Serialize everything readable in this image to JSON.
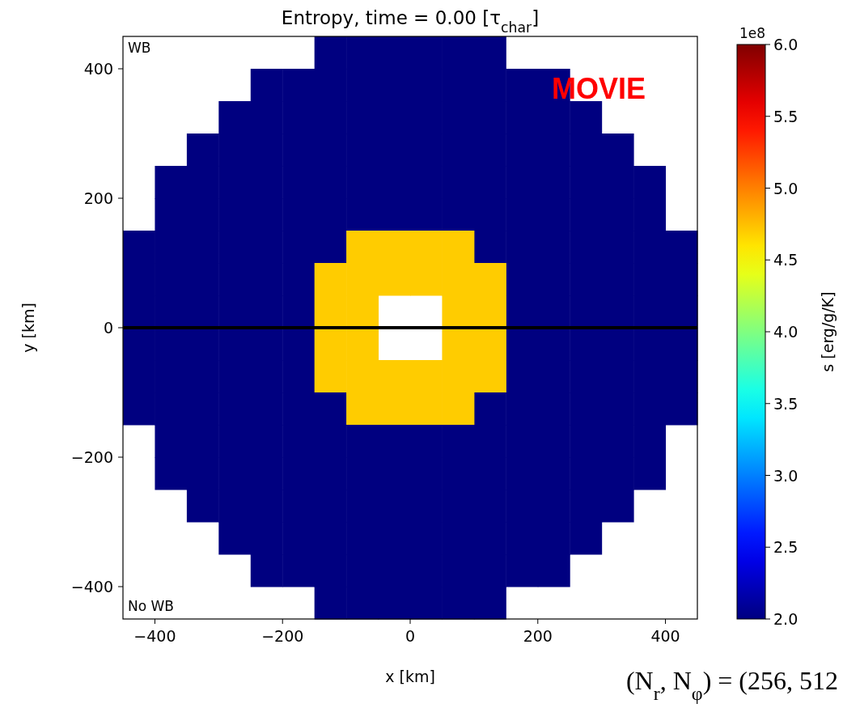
{
  "chart_data": {
    "type": "scatter",
    "title": "Entropy, time = 0.00 [τ$_{char}$]",
    "xlabel": "x [km]",
    "ylabel": "y [km]",
    "clabel": "s [erg/g/K]",
    "marker": "square",
    "annotations": [
      "WB",
      "No WB",
      "MOVIE",
      "1e8",
      "(N$_{r}$, N$_{φ}$) = (256, 512"
    ],
    "xlim": [
      -450,
      450
    ],
    "ylim": [
      -450,
      450
    ],
    "xticks": [
      {
        "value": -400,
        "label": "−400"
      },
      {
        "value": -200,
        "label": "−200"
      },
      0,
      200,
      400
    ],
    "yticks": [
      {
        "value": -400,
        "label": "−400"
      },
      {
        "value": -200,
        "label": "−200"
      },
      0,
      200,
      400
    ],
    "clim": [
      2,
      6
    ],
    "cticks": [
      {
        "value": 2,
        "label": "2.0"
      },
      {
        "value": 2.5,
        "label": "2.5"
      },
      {
        "value": 3,
        "label": "3.0"
      },
      {
        "value": 3.5,
        "label": "3.5"
      },
      {
        "value": 4,
        "label": "4.0"
      },
      {
        "value": 4.5,
        "label": "4.5"
      },
      {
        "value": 5,
        "label": "5.0"
      },
      {
        "value": 5.5,
        "label": "5.5"
      },
      {
        "value": 6,
        "label": "6.0"
      }
    ],
    "ref_lines": [
      {
        "axis": "y",
        "value": 0,
        "color": "#000000"
      }
    ],
    "series": [
      {
        "x": [
          -125,
          -75,
          -25,
          25,
          75,
          125
        ],
        "values": [
          425,
          425,
          425,
          425,
          425,
          425
        ],
        "cvalues": [
          2,
          2,
          2,
          2,
          2,
          2
        ]
      },
      {
        "x": [
          -225,
          -175,
          -125,
          -75,
          -25,
          25,
          75,
          125,
          175,
          225
        ],
        "values": [
          375,
          375,
          375,
          375,
          375,
          375,
          375,
          375,
          375,
          375
        ],
        "cvalues": [
          2,
          2,
          2,
          2,
          2,
          2,
          2,
          2,
          2,
          2
        ]
      },
      {
        "x": [
          -275,
          -225,
          -175,
          -125,
          -75,
          -25,
          25,
          75,
          125,
          175,
          225,
          275
        ],
        "values": [
          325,
          325,
          325,
          325,
          325,
          325,
          325,
          325,
          325,
          325,
          325,
          325
        ],
        "cvalues": [
          2,
          2,
          2,
          2,
          2,
          2,
          2,
          2,
          2,
          2,
          2,
          2
        ]
      },
      {
        "x": [
          -325,
          -275,
          -225,
          -175,
          -125,
          -75,
          -25,
          25,
          75,
          125,
          175,
          225,
          275,
          325
        ],
        "values": [
          275,
          275,
          275,
          275,
          275,
          275,
          275,
          275,
          275,
          275,
          275,
          275,
          275,
          275
        ],
        "cvalues": [
          2,
          2,
          2,
          2,
          2,
          2,
          2,
          2,
          2,
          2,
          2,
          2,
          2,
          2
        ]
      },
      {
        "x": [
          -375,
          -325,
          -275,
          -225,
          -175,
          -125,
          -75,
          -25,
          25,
          75,
          125,
          175,
          225,
          275,
          325,
          375
        ],
        "values": [
          225,
          225,
          225,
          225,
          225,
          225,
          225,
          225,
          225,
          225,
          225,
          225,
          225,
          225,
          225,
          225
        ],
        "cvalues": [
          2,
          2,
          2,
          2,
          2,
          2,
          2,
          2,
          2,
          2,
          2,
          2,
          2,
          2,
          2,
          2
        ]
      },
      {
        "x": [
          -375,
          -325,
          -275,
          -225,
          -175,
          -125,
          -75,
          -25,
          25,
          75,
          125,
          175,
          225,
          275,
          325,
          375
        ],
        "values": [
          175,
          175,
          175,
          175,
          175,
          175,
          175,
          175,
          175,
          175,
          175,
          175,
          175,
          175,
          175,
          175
        ],
        "cvalues": [
          2,
          2,
          2,
          2,
          2,
          2,
          2,
          2,
          2,
          2,
          2,
          2,
          2,
          2,
          2,
          2
        ]
      },
      {
        "x": [
          -425,
          -375,
          -325,
          -275,
          -225,
          -175,
          -125,
          125,
          175,
          225,
          275,
          325,
          375,
          425
        ],
        "values": [
          125,
          125,
          125,
          125,
          125,
          125,
          125,
          125,
          125,
          125,
          125,
          125,
          125,
          125
        ],
        "cvalues": [
          2,
          2,
          2,
          2,
          2,
          2,
          2,
          2,
          2,
          2,
          2,
          2,
          2,
          2
        ]
      },
      {
        "x": [
          -75,
          -25,
          25,
          75
        ],
        "values": [
          125,
          125,
          125,
          125
        ],
        "cvalues": [
          4.7,
          4.7,
          4.7,
          4.7
        ]
      },
      {
        "x": [
          -425,
          -375,
          -325,
          -275,
          -225,
          -175,
          175,
          225,
          275,
          325,
          375,
          425
        ],
        "values": [
          75,
          75,
          75,
          75,
          75,
          75,
          75,
          75,
          75,
          75,
          75,
          75
        ],
        "cvalues": [
          2,
          2,
          2,
          2,
          2,
          2,
          2,
          2,
          2,
          2,
          2,
          2
        ]
      },
      {
        "x": [
          -125,
          -75,
          -25,
          25,
          75,
          125
        ],
        "values": [
          75,
          75,
          75,
          75,
          75,
          75
        ],
        "cvalues": [
          4.7,
          4.7,
          4.7,
          4.7,
          4.7,
          4.7
        ]
      },
      {
        "x": [
          -425,
          -375,
          -325,
          -275,
          -225,
          -175,
          175,
          225,
          275,
          325,
          375,
          425
        ],
        "values": [
          25,
          25,
          25,
          25,
          25,
          25,
          25,
          25,
          25,
          25,
          25,
          25
        ],
        "cvalues": [
          2,
          2,
          2,
          2,
          2,
          2,
          2,
          2,
          2,
          2,
          2,
          2
        ]
      },
      {
        "x": [
          -125,
          -75,
          75,
          125
        ],
        "values": [
          25,
          25,
          25,
          25
        ],
        "cvalues": [
          4.7,
          4.7,
          4.7,
          4.7
        ]
      },
      {
        "x": [
          -425,
          -375,
          -325,
          -275,
          -225,
          -175,
          175,
          225,
          275,
          325,
          375,
          425
        ],
        "values": [
          -25,
          -25,
          -25,
          -25,
          -25,
          -25,
          -25,
          -25,
          -25,
          -25,
          -25,
          -25
        ],
        "cvalues": [
          2,
          2,
          2,
          2,
          2,
          2,
          2,
          2,
          2,
          2,
          2,
          2
        ]
      },
      {
        "x": [
          -125,
          -75,
          75,
          125
        ],
        "values": [
          -25,
          -25,
          -25,
          -25
        ],
        "cvalues": [
          4.7,
          4.7,
          4.7,
          4.7
        ]
      },
      {
        "x": [
          -425,
          -375,
          -325,
          -275,
          -225,
          -175,
          175,
          225,
          275,
          325,
          375,
          425
        ],
        "values": [
          -75,
          -75,
          -75,
          -75,
          -75,
          -75,
          -75,
          -75,
          -75,
          -75,
          -75,
          -75
        ],
        "cvalues": [
          2,
          2,
          2,
          2,
          2,
          2,
          2,
          2,
          2,
          2,
          2,
          2
        ]
      },
      {
        "x": [
          -125,
          -75,
          -25,
          25,
          75,
          125
        ],
        "values": [
          -75,
          -75,
          -75,
          -75,
          -75,
          -75
        ],
        "cvalues": [
          4.7,
          4.7,
          4.7,
          4.7,
          4.7,
          4.7
        ]
      },
      {
        "x": [
          -425,
          -375,
          -325,
          -275,
          -225,
          -175,
          -125,
          125,
          175,
          225,
          275,
          325,
          375,
          425
        ],
        "values": [
          -125,
          -125,
          -125,
          -125,
          -125,
          -125,
          -125,
          -125,
          -125,
          -125,
          -125,
          -125,
          -125,
          -125
        ],
        "cvalues": [
          2,
          2,
          2,
          2,
          2,
          2,
          2,
          2,
          2,
          2,
          2,
          2,
          2,
          2
        ]
      },
      {
        "x": [
          -75,
          -25,
          25,
          75
        ],
        "values": [
          -125,
          -125,
          -125,
          -125
        ],
        "cvalues": [
          4.7,
          4.7,
          4.7,
          4.7
        ]
      },
      {
        "x": [
          -375,
          -325,
          -275,
          -225,
          -175,
          -125,
          -75,
          -25,
          25,
          75,
          125,
          175,
          225,
          275,
          325,
          375
        ],
        "values": [
          -175,
          -175,
          -175,
          -175,
          -175,
          -175,
          -175,
          -175,
          -175,
          -175,
          -175,
          -175,
          -175,
          -175,
          -175,
          -175
        ],
        "cvalues": [
          2,
          2,
          2,
          2,
          2,
          2,
          2,
          2,
          2,
          2,
          2,
          2,
          2,
          2,
          2,
          2
        ]
      },
      {
        "x": [
          -375,
          -325,
          -275,
          -225,
          -175,
          -125,
          -75,
          -25,
          25,
          75,
          125,
          175,
          225,
          275,
          325,
          375
        ],
        "values": [
          -225,
          -225,
          -225,
          -225,
          -225,
          -225,
          -225,
          -225,
          -225,
          -225,
          -225,
          -225,
          -225,
          -225,
          -225,
          -225
        ],
        "cvalues": [
          2,
          2,
          2,
          2,
          2,
          2,
          2,
          2,
          2,
          2,
          2,
          2,
          2,
          2,
          2,
          2
        ]
      },
      {
        "x": [
          -325,
          -275,
          -225,
          -175,
          -125,
          -75,
          -25,
          25,
          75,
          125,
          175,
          225,
          275,
          325
        ],
        "values": [
          -275,
          -275,
          -275,
          -275,
          -275,
          -275,
          -275,
          -275,
          -275,
          -275,
          -275,
          -275,
          -275,
          -275
        ],
        "cvalues": [
          2,
          2,
          2,
          2,
          2,
          2,
          2,
          2,
          2,
          2,
          2,
          2,
          2,
          2
        ]
      },
      {
        "x": [
          -275,
          -225,
          -175,
          -125,
          -75,
          -25,
          25,
          75,
          125,
          175,
          225,
          275
        ],
        "values": [
          -325,
          -325,
          -325,
          -325,
          -325,
          -325,
          -325,
          -325,
          -325,
          -325,
          -325,
          -325
        ],
        "cvalues": [
          2,
          2,
          2,
          2,
          2,
          2,
          2,
          2,
          2,
          2,
          2,
          2
        ]
      },
      {
        "x": [
          -225,
          -175,
          -125,
          -75,
          -25,
          25,
          75,
          125,
          175,
          225
        ],
        "values": [
          -375,
          -375,
          -375,
          -375,
          -375,
          -375,
          -375,
          -375,
          -375,
          -375
        ],
        "cvalues": [
          2,
          2,
          2,
          2,
          2,
          2,
          2,
          2,
          2,
          2
        ]
      },
      {
        "x": [
          -125,
          -75,
          -25,
          25,
          75,
          125
        ],
        "values": [
          -425,
          -425,
          -425,
          -425,
          -425,
          -425
        ],
        "cvalues": [
          2,
          2,
          2,
          2,
          2,
          2
        ]
      }
    ]
  }
}
